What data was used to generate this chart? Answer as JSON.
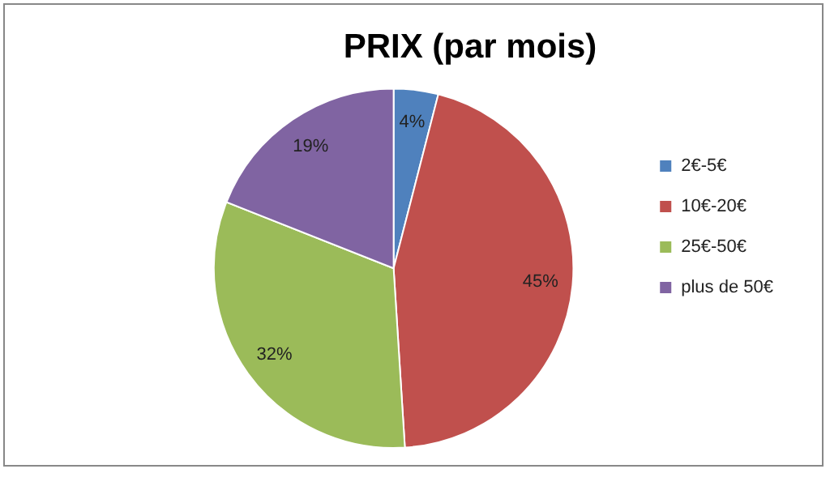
{
  "chart_data": {
    "type": "pie",
    "title": "PRIX (par mois)",
    "categories": [
      "2€-5€",
      "10€-20€",
      "25€-50€",
      "plus de 50€"
    ],
    "values": [
      4,
      45,
      32,
      19
    ],
    "colors": [
      "#4f81bd",
      "#c0504d",
      "#9bbb59",
      "#8064a2"
    ],
    "value_labels": [
      "4%",
      "45%",
      "32%",
      "19%"
    ],
    "legend": "right"
  }
}
